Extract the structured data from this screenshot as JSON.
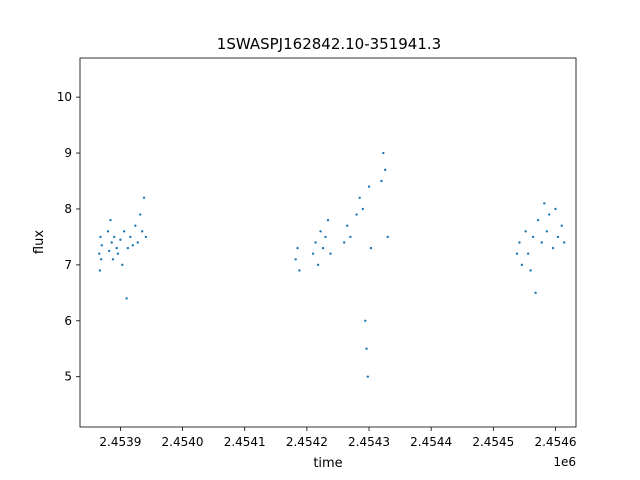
{
  "chart_data": {
    "type": "scatter",
    "title": "1SWASPJ162842.10-351941.3",
    "xlabel": "time",
    "ylabel": "flux",
    "x_offset_label": "1e6",
    "x_tick_labels": [
      "2.4539",
      "2.4540",
      "2.4541",
      "2.4542",
      "2.4543",
      "2.4544",
      "2.4545",
      "2.4546"
    ],
    "y_tick_labels": [
      "5",
      "6",
      "7",
      "8",
      "9",
      "10"
    ],
    "x_ticks": [
      2453900,
      2454000,
      2454100,
      2454200,
      2454300,
      2454400,
      2454500,
      2454600
    ],
    "y_ticks": [
      5,
      6,
      7,
      8,
      9,
      10
    ],
    "xlim": [
      2453835,
      2454633
    ],
    "ylim": [
      4.1,
      10.7
    ],
    "grid": false,
    "marker_color": "#1f77b4",
    "series": [
      {
        "values": [
          {
            "x": 2453866,
            "y": 7.2
          },
          {
            "x": 2453867,
            "y": 6.9
          },
          {
            "x": 2453868,
            "y": 7.5
          },
          {
            "x": 2453869,
            "y": 7.1
          },
          {
            "x": 2453870,
            "y": 7.35
          },
          {
            "x": 2453880,
            "y": 7.6
          },
          {
            "x": 2453882,
            "y": 7.25
          },
          {
            "x": 2453884,
            "y": 7.8
          },
          {
            "x": 2453886,
            "y": 7.4
          },
          {
            "x": 2453888,
            "y": 7.1
          },
          {
            "x": 2453890,
            "y": 7.5
          },
          {
            "x": 2453894,
            "y": 7.3
          },
          {
            "x": 2453896,
            "y": 7.2
          },
          {
            "x": 2453900,
            "y": 7.45
          },
          {
            "x": 2453903,
            "y": 7.0
          },
          {
            "x": 2453906,
            "y": 7.6
          },
          {
            "x": 2453910,
            "y": 6.4
          },
          {
            "x": 2453912,
            "y": 7.3
          },
          {
            "x": 2453916,
            "y": 7.5
          },
          {
            "x": 2453920,
            "y": 7.35
          },
          {
            "x": 2453924,
            "y": 7.7
          },
          {
            "x": 2453928,
            "y": 7.4
          },
          {
            "x": 2453932,
            "y": 7.9
          },
          {
            "x": 2453935,
            "y": 7.6
          },
          {
            "x": 2453938,
            "y": 8.2
          },
          {
            "x": 2453941,
            "y": 7.5
          },
          {
            "x": 2454182,
            "y": 7.1
          },
          {
            "x": 2454185,
            "y": 7.3
          },
          {
            "x": 2454188,
            "y": 6.9
          },
          {
            "x": 2454210,
            "y": 7.2
          },
          {
            "x": 2454214,
            "y": 7.4
          },
          {
            "x": 2454218,
            "y": 7.0
          },
          {
            "x": 2454222,
            "y": 7.6
          },
          {
            "x": 2454226,
            "y": 7.3
          },
          {
            "x": 2454230,
            "y": 7.5
          },
          {
            "x": 2454234,
            "y": 7.8
          },
          {
            "x": 2454238,
            "y": 7.2
          },
          {
            "x": 2454260,
            "y": 7.4
          },
          {
            "x": 2454265,
            "y": 7.7
          },
          {
            "x": 2454270,
            "y": 7.5
          },
          {
            "x": 2454280,
            "y": 7.9
          },
          {
            "x": 2454285,
            "y": 8.2
          },
          {
            "x": 2454290,
            "y": 8.0
          },
          {
            "x": 2454294,
            "y": 6.0
          },
          {
            "x": 2454296,
            "y": 5.5
          },
          {
            "x": 2454298,
            "y": 5.0
          },
          {
            "x": 2454300,
            "y": 8.4
          },
          {
            "x": 2454303,
            "y": 7.3
          },
          {
            "x": 2454320,
            "y": 8.5
          },
          {
            "x": 2454323,
            "y": 9.0
          },
          {
            "x": 2454326,
            "y": 8.7
          },
          {
            "x": 2454330,
            "y": 7.5
          },
          {
            "x": 2454538,
            "y": 7.2
          },
          {
            "x": 2454542,
            "y": 7.4
          },
          {
            "x": 2454546,
            "y": 7.0
          },
          {
            "x": 2454552,
            "y": 7.6
          },
          {
            "x": 2454556,
            "y": 7.2
          },
          {
            "x": 2454560,
            "y": 6.9
          },
          {
            "x": 2454564,
            "y": 7.5
          },
          {
            "x": 2454568,
            "y": 6.5
          },
          {
            "x": 2454572,
            "y": 7.8
          },
          {
            "x": 2454578,
            "y": 7.4
          },
          {
            "x": 2454582,
            "y": 8.1
          },
          {
            "x": 2454586,
            "y": 7.6
          },
          {
            "x": 2454590,
            "y": 7.9
          },
          {
            "x": 2454596,
            "y": 7.3
          },
          {
            "x": 2454600,
            "y": 8.0
          },
          {
            "x": 2454604,
            "y": 7.5
          },
          {
            "x": 2454610,
            "y": 7.7
          },
          {
            "x": 2454614,
            "y": 7.4
          }
        ]
      }
    ]
  }
}
